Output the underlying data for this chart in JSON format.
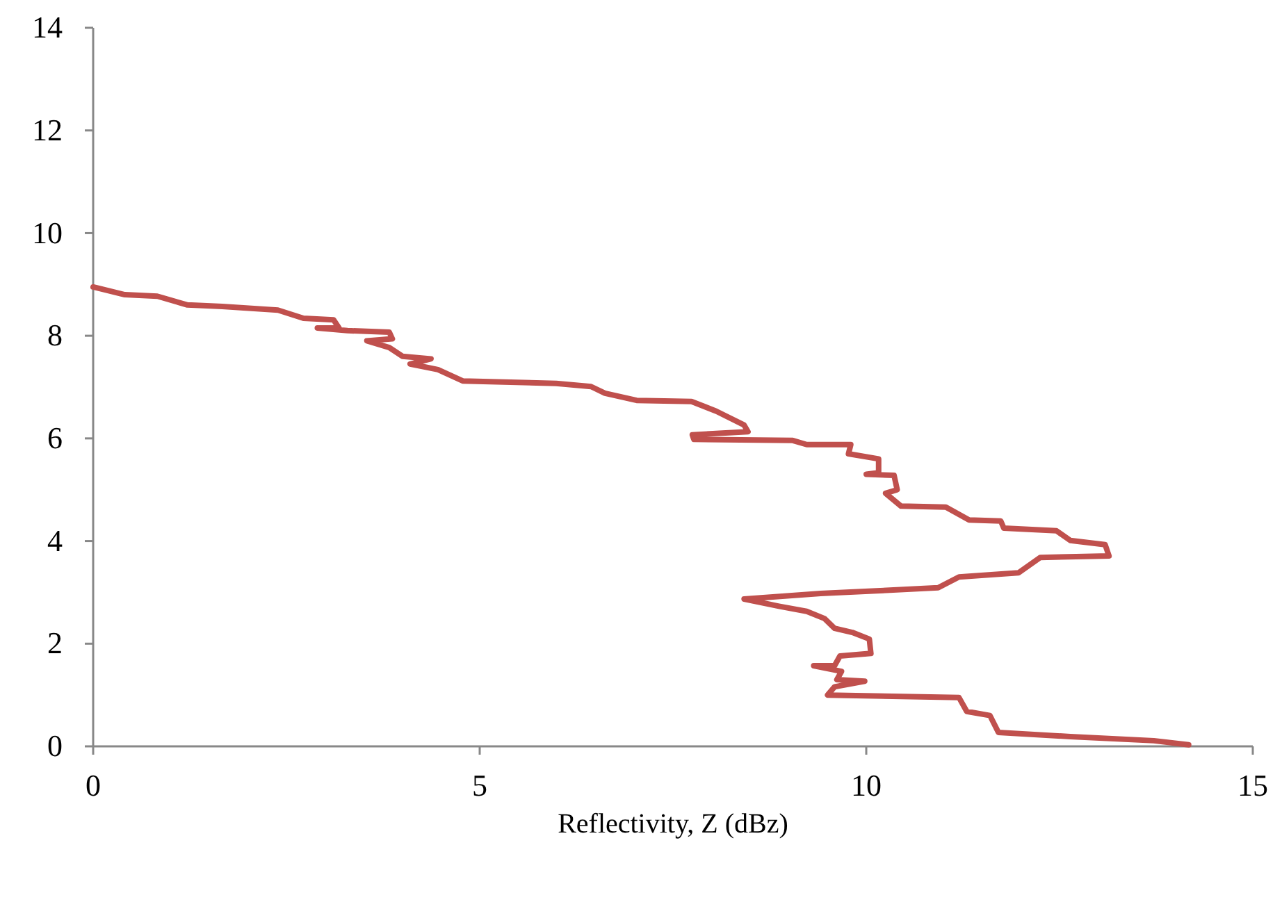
{
  "chart_data": {
    "type": "line",
    "xlabel": "Reflectivity, Z (dBz)",
    "xlim": [
      0,
      15
    ],
    "xticks": [
      0,
      5,
      10,
      15
    ],
    "ylim": [
      0,
      14
    ],
    "yticks": [
      0,
      2,
      4,
      6,
      8,
      10,
      12,
      14
    ],
    "grid": false,
    "marker": "none",
    "line_style": "solid",
    "series": [
      {
        "color": "#c0504d",
        "x": [
          0,
          0.41,
          0.83,
          1.22,
          1.67,
          2.39,
          2.72,
          3.11,
          3.18,
          2.9,
          3.29,
          3.83,
          3.87,
          3.54,
          3.83,
          4.0,
          4.37,
          4.1,
          4.46,
          4.78,
          5.99,
          6.44,
          6.62,
          7.03,
          7.74,
          8.06,
          8.42,
          8.47,
          7.75,
          7.77,
          9.05,
          9.23,
          9.8,
          9.77,
          10.16,
          10.16,
          10.0,
          10.36,
          10.4,
          10.25,
          10.45,
          11.03,
          11.33,
          11.74,
          11.78,
          12.46,
          12.64,
          13.09,
          13.14,
          12.25,
          11.97,
          11.2,
          10.93,
          10.13,
          9.41,
          8.42,
          8.87,
          9.23,
          9.46,
          9.59,
          9.82,
          10.04,
          10.06,
          9.66,
          9.59,
          9.32,
          9.68,
          9.62,
          9.98,
          9.59,
          9.5,
          11.2,
          11.3,
          11.6,
          11.71,
          12.64,
          13.72,
          14.17
        ],
        "values": [
          8.95,
          8.8,
          8.77,
          8.6,
          8.57,
          8.5,
          8.34,
          8.31,
          8.15,
          8.15,
          8.1,
          8.07,
          7.94,
          7.9,
          7.77,
          7.6,
          7.55,
          7.45,
          7.34,
          7.12,
          7.07,
          7.01,
          6.88,
          6.74,
          6.72,
          6.53,
          6.26,
          6.13,
          6.07,
          5.98,
          5.96,
          5.88,
          5.88,
          5.7,
          5.6,
          5.33,
          5.3,
          5.28,
          5.0,
          4.93,
          4.68,
          4.66,
          4.41,
          4.39,
          4.25,
          4.2,
          4.01,
          3.93,
          3.71,
          3.68,
          3.38,
          3.3,
          3.09,
          3.03,
          2.98,
          2.87,
          2.73,
          2.63,
          2.49,
          2.3,
          2.22,
          2.09,
          1.81,
          1.76,
          1.57,
          1.57,
          1.46,
          1.3,
          1.27,
          1.16,
          1.0,
          0.95,
          0.68,
          0.6,
          0.27,
          0.19,
          0.11,
          0.03
        ]
      }
    ]
  }
}
